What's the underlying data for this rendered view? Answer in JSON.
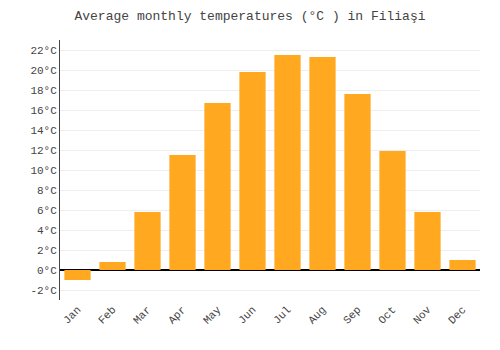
{
  "chart_data": {
    "type": "bar",
    "title": "Average monthly temperatures (°C ) in Filiaşi",
    "categories": [
      "Jan",
      "Feb",
      "Mar",
      "Apr",
      "May",
      "Jun",
      "Jul",
      "Aug",
      "Sep",
      "Oct",
      "Nov",
      "Dec"
    ],
    "values": [
      -1.0,
      0.8,
      5.8,
      11.5,
      16.7,
      19.8,
      21.5,
      21.3,
      17.6,
      11.9,
      5.8,
      1.0
    ],
    "color": "#FFA820",
    "ylim": [
      -3,
      23
    ],
    "yticks": [
      {
        "value": -2,
        "label": "-2°C"
      },
      {
        "value": 0,
        "label": "0°C"
      },
      {
        "value": 2,
        "label": "2°C"
      },
      {
        "value": 4,
        "label": "4°C"
      },
      {
        "value": 6,
        "label": "6°C"
      },
      {
        "value": 8,
        "label": "8°C"
      },
      {
        "value": 10,
        "label": "10°C"
      },
      {
        "value": 12,
        "label": "12°C"
      },
      {
        "value": 14,
        "label": "14°C"
      },
      {
        "value": 16,
        "label": "16°C"
      },
      {
        "value": 18,
        "label": "18°C"
      },
      {
        "value": 20,
        "label": "20°C"
      },
      {
        "value": 22,
        "label": "22°C"
      }
    ],
    "grid": true
  }
}
